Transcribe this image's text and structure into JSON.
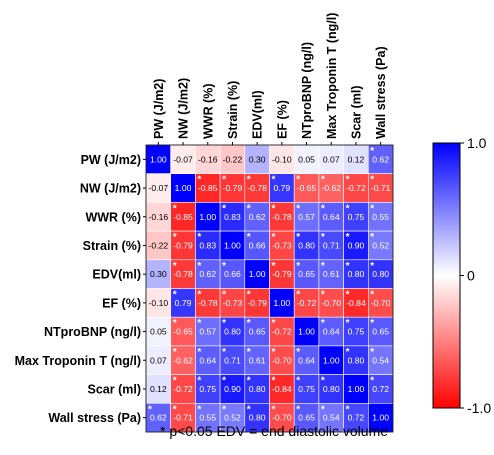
{
  "chart_data": {
    "type": "heatmap",
    "row_labels": [
      "PW (J/m2)",
      "NW (J/m2)",
      "WWR (%)",
      "Strain (%)",
      "EDV(ml)",
      "EF (%)",
      "NTproBNP (ng/l)",
      "Max Troponin T (ng/l)",
      "Scar (ml)",
      "Wall stress (Pa)"
    ],
    "column_labels": [
      "PW (J/m2)",
      "NW (J/m2)",
      "WWR (%)",
      "Strain (%)",
      "EDV(ml)",
      "EF (%)",
      "NTproBNP (ng/l)",
      "Max Troponin T (ng/l)",
      "Scar (ml)",
      "Wall stress (Pa)"
    ],
    "values": [
      [
        "1.00",
        "-0.07",
        "-0.16",
        "-0.22",
        "0.30",
        "-0.10",
        "0.05",
        "0.07",
        "0.12",
        "0.62"
      ],
      [
        "-0.07",
        "1.00",
        "-0.85",
        "-0.79",
        "-0.78",
        "0.79",
        "-0.65",
        "-0.62",
        "-0.72",
        "-0.71"
      ],
      [
        "-0.16",
        "-0.85",
        "1.00",
        "0.83",
        "0.62",
        "-0.78",
        "0.57",
        "0.64",
        "0.75",
        "0.55"
      ],
      [
        "-0.22",
        "-0.79",
        "0.83",
        "1.00",
        "0.66",
        "-0.73",
        "0.80",
        "0.71",
        "0.90",
        "0.52"
      ],
      [
        "0.30",
        "-0.78",
        "0.62",
        "0.66",
        "1.00",
        "-0.79",
        "0.65",
        "0.61",
        "0.80",
        "0.80"
      ],
      [
        "-0.10",
        "0.79",
        "-0.78",
        "-0.73",
        "-0.79",
        "1.00",
        "-0.72",
        "-0.70",
        "-0.84",
        "-0.70"
      ],
      [
        "0.05",
        "-0.65",
        "0.57",
        "0.80",
        "0.65",
        "-0.72",
        "1.00",
        "0.64",
        "0.75",
        "0.65"
      ],
      [
        "0.07",
        "-0.62",
        "0.64",
        "0.71",
        "0.61",
        "-0.70",
        "0.64",
        "1.00",
        "0.80",
        "0.54"
      ],
      [
        "0.12",
        "-0.72",
        "0.75",
        "0.90",
        "0.80",
        "-0.84",
        "0.75",
        "0.80",
        "1.00",
        "0.72"
      ],
      [
        "0.62",
        "-0.71",
        "0.55",
        "0.52",
        "0.80",
        "-0.70",
        "0.65",
        "0.54",
        "0.72",
        "1.00"
      ]
    ],
    "significant": [
      [
        false,
        false,
        false,
        false,
        false,
        false,
        false,
        false,
        false,
        true
      ],
      [
        false,
        false,
        true,
        true,
        true,
        true,
        true,
        true,
        true,
        true
      ],
      [
        false,
        true,
        false,
        true,
        true,
        true,
        true,
        true,
        true,
        true
      ],
      [
        false,
        true,
        true,
        false,
        true,
        true,
        true,
        true,
        true,
        true
      ],
      [
        false,
        true,
        true,
        true,
        false,
        true,
        true,
        true,
        true,
        true
      ],
      [
        false,
        true,
        true,
        true,
        true,
        false,
        true,
        true,
        true,
        true
      ],
      [
        false,
        true,
        true,
        true,
        true,
        true,
        false,
        true,
        true,
        true
      ],
      [
        false,
        true,
        true,
        true,
        true,
        true,
        true,
        false,
        true,
        true
      ],
      [
        false,
        true,
        true,
        true,
        true,
        true,
        true,
        true,
        false,
        true
      ],
      [
        true,
        true,
        true,
        true,
        true,
        true,
        true,
        true,
        true,
        false
      ]
    ],
    "significance_marker": "*",
    "colorbar": {
      "range": [
        -1.0,
        1.0
      ],
      "tick_labels": [
        "1.0",
        "0",
        "-1.0"
      ],
      "tick_values": [
        1.0,
        0,
        -1.0
      ],
      "colors": {
        "negative": "#ff0000",
        "zero": "#ffffff",
        "positive": "#0000ff"
      }
    },
    "footnote": "* p<0.05   EDV = end diastolic volume"
  }
}
